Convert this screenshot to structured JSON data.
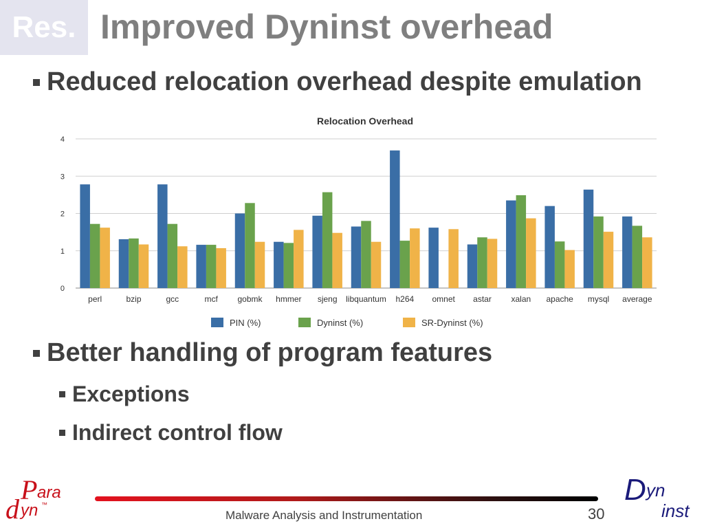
{
  "slide": {
    "badge": "Res.",
    "title": "Improved Dyninst overhead",
    "bullets": [
      {
        "text": "Reduced relocation overhead despite emulation"
      },
      {
        "text": "Better handling of program features",
        "sub": [
          "Exceptions",
          "Indirect control flow"
        ]
      }
    ],
    "footer": "Malware Analysis and Instrumentation",
    "page_number": "30",
    "logos": {
      "left": {
        "top": "ara",
        "bottom": "yn",
        "big_top": "P",
        "big_bottom": "d",
        "tm": "™"
      },
      "right": {
        "big": "D",
        "top": "yn",
        "bottom": "inst"
      }
    }
  },
  "colors": {
    "pin": "#3a6ea6",
    "dyninst": "#6aa24c",
    "sr_dyninst": "#f0b348",
    "title": "#7f7f7f",
    "text": "#404040",
    "logo_red": "#c8101a",
    "logo_navy": "#1a1a7a"
  },
  "chart_data": {
    "type": "bar",
    "title": "Relocation Overhead",
    "categories": [
      "perl",
      "bzip",
      "gcc",
      "mcf",
      "gobmk",
      "hmmer",
      "sjeng",
      "libquantum",
      "h264",
      "omnet",
      "astar",
      "xalan",
      "apache",
      "mysql",
      "average"
    ],
    "series": [
      {
        "name": "PIN (%)",
        "values": [
          2.78,
          1.31,
          2.78,
          1.16,
          2.0,
          1.24,
          1.94,
          1.65,
          3.69,
          1.62,
          1.17,
          2.35,
          2.2,
          2.64,
          1.92
        ]
      },
      {
        "name": "Dyninst (%)",
        "values": [
          1.72,
          1.33,
          1.72,
          1.16,
          2.28,
          1.21,
          2.57,
          1.8,
          1.27,
          null,
          1.36,
          2.49,
          1.25,
          1.92,
          1.67
        ]
      },
      {
        "name": "SR-Dyninst (%)",
        "values": [
          1.62,
          1.17,
          1.12,
          1.07,
          1.24,
          1.56,
          1.48,
          1.24,
          1.6,
          1.58,
          1.32,
          1.87,
          1.02,
          1.51,
          1.36
        ]
      }
    ],
    "ylim": [
      0,
      4
    ],
    "yticks": [
      "0",
      "1",
      "2",
      "3",
      "4"
    ],
    "grid": true,
    "legend": "bottom"
  }
}
